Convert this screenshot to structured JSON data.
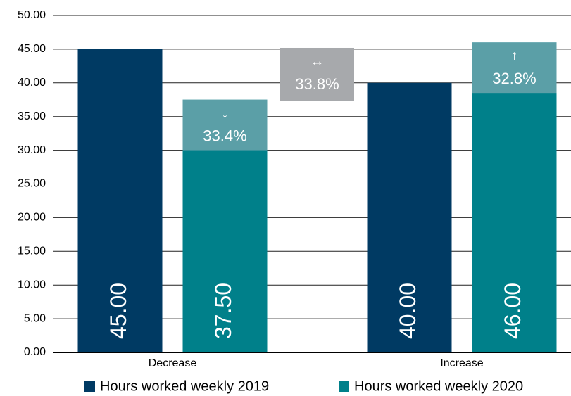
{
  "chart_data": {
    "type": "bar",
    "categories": [
      "Decrease",
      "Increase"
    ],
    "series": [
      {
        "name": "Hours worked weekly 2019",
        "color": "#003a63",
        "values": [
          45,
          40
        ],
        "value_labels": [
          "45.00",
          "40.00"
        ]
      },
      {
        "name": "Hours worked weekly 2020",
        "color": "#00808a",
        "values": [
          37.5,
          46
        ],
        "value_labels": [
          "37.50",
          "46.00"
        ]
      }
    ],
    "ylim": [
      0,
      50
    ],
    "yticks": [
      {
        "value": 0,
        "label": "0.00"
      },
      {
        "value": 5,
        "label": "5.00"
      },
      {
        "value": 10,
        "label": "10.00"
      },
      {
        "value": 15,
        "label": "15.00"
      },
      {
        "value": 20,
        "label": "20.00"
      },
      {
        "value": 25,
        "label": "25.00"
      },
      {
        "value": 30,
        "label": "30.00"
      },
      {
        "value": 35,
        "label": "35.00"
      },
      {
        "value": 40,
        "label": "40.00"
      },
      {
        "value": 45,
        "label": "45.00"
      },
      {
        "value": 50,
        "label": "50.00"
      }
    ],
    "grid": true,
    "legend": "bottom",
    "annotations": [
      {
        "category": 0,
        "series": 1,
        "arrow": "↓",
        "label": "33.4%",
        "range": [
          30,
          37.5
        ],
        "color": "#5b9fa7"
      },
      {
        "arrow": "↔",
        "label": "33.8%",
        "range": [
          37.3,
          45.2
        ],
        "color": "#a7a9ac"
      },
      {
        "category": 1,
        "series": 1,
        "arrow": "↑",
        "label": "32.8%",
        "range": [
          38.5,
          46
        ],
        "color": "#5b9fa7"
      }
    ]
  }
}
